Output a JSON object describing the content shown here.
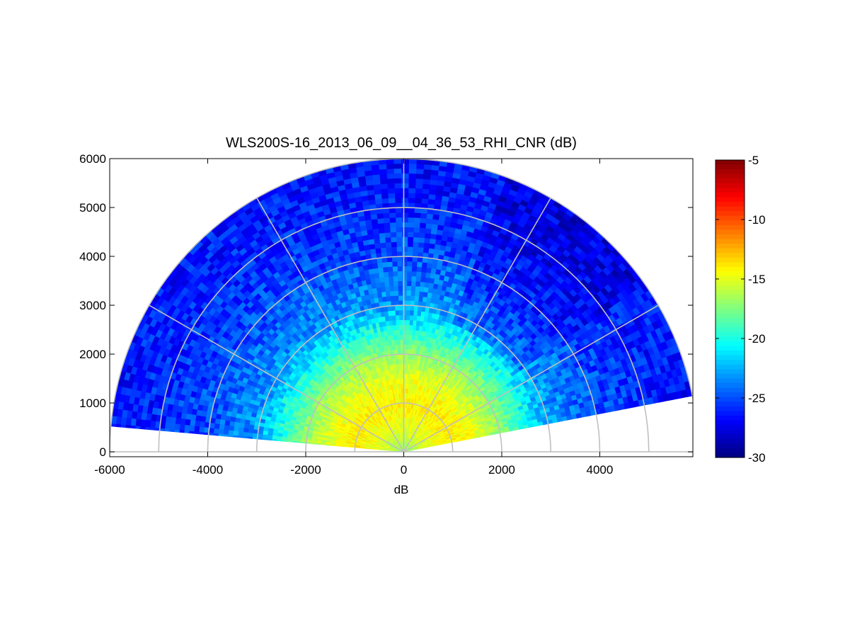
{
  "chart_data": {
    "type": "heatmap",
    "subtype": "polar-rhi-scan",
    "title": "WLS200S-16_2013_06_09__04_36_53_RHI_CNR (dB)",
    "xlabel": "dB",
    "ylabel": "",
    "xlim": [
      -6000,
      5900
    ],
    "ylim": [
      -100,
      6000
    ],
    "x_ticks": [
      -6000,
      -4000,
      -2000,
      0,
      2000,
      4000
    ],
    "y_ticks": [
      0,
      1000,
      2000,
      3000,
      4000,
      5000,
      6000
    ],
    "x_tick_labels": [
      "-6000",
      "-4000",
      "-2000",
      "0",
      "2000",
      "4000"
    ],
    "y_tick_labels": [
      "0",
      "1000",
      "2000",
      "3000",
      "4000",
      "5000",
      "6000"
    ],
    "range_rings": [
      1000,
      2000,
      3000,
      4000,
      5000,
      6000
    ],
    "spokes_deg": [
      0,
      30,
      60,
      90,
      120,
      150,
      180
    ],
    "scan_sector_deg": [
      11,
      175
    ],
    "max_range": 6000,
    "grid_color": "#c0c0c0",
    "colorbar": {
      "colormap": "jet",
      "range": [
        -30,
        -5
      ],
      "ticks": [
        -5,
        -10,
        -15,
        -20,
        -25,
        -30
      ],
      "tick_labels": [
        "-5",
        "-10",
        "-15",
        "-20",
        "-25",
        "-30"
      ],
      "units": "dB"
    },
    "cnr_range_profile": {
      "range_m": [
        0,
        500,
        1000,
        1500,
        2000,
        2500,
        3000,
        4000,
        5000,
        6000
      ],
      "cnr_db": [
        -17,
        -15,
        -14,
        -15,
        -17,
        -20,
        -23,
        -25,
        -26,
        -26.5
      ]
    }
  }
}
